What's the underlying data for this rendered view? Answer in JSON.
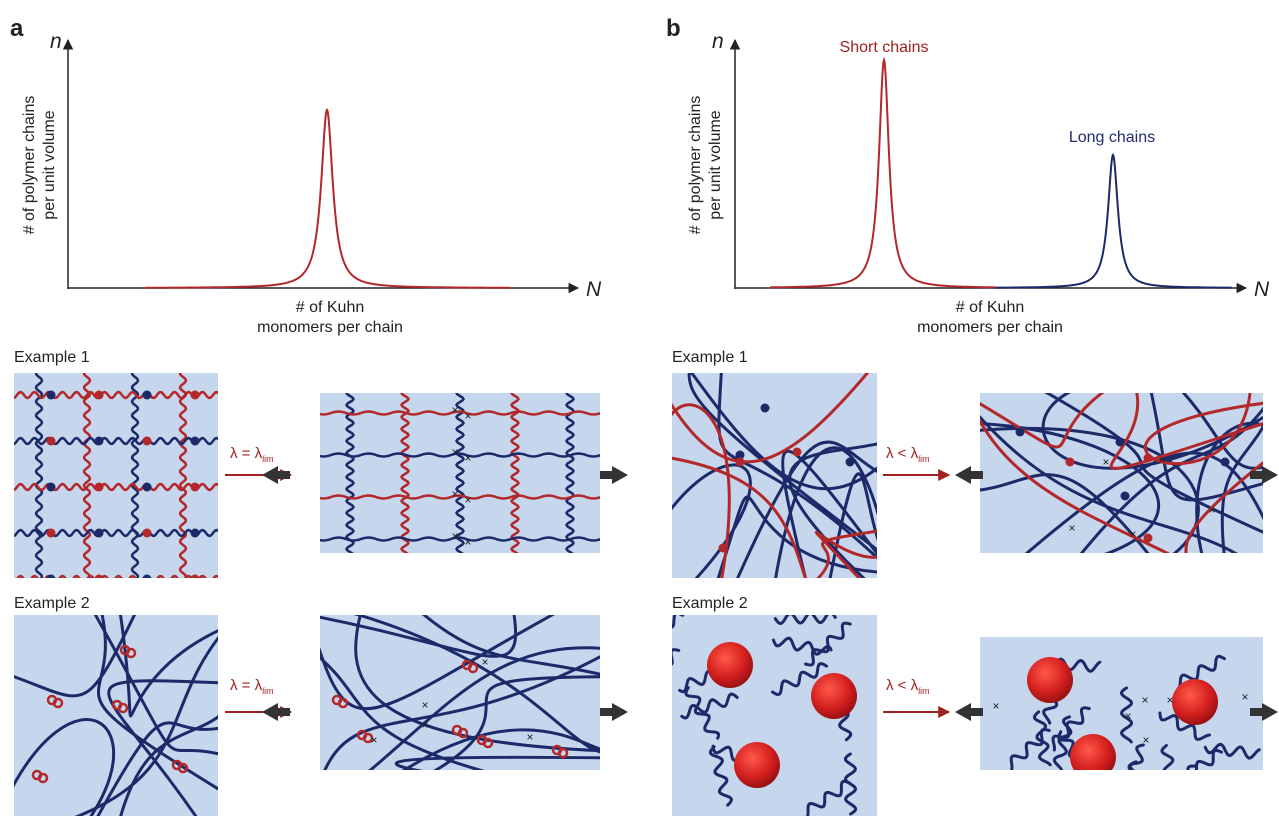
{
  "panels": [
    {
      "label": "a",
      "y_axis_symbol": "n",
      "x_axis_symbol": "N",
      "y_axis_label": [
        "# of polymer chains",
        "per unit volume"
      ],
      "x_axis_label": [
        "# of Kuhn",
        "monomers per chain"
      ],
      "examples": [
        {
          "title": "Example 1",
          "arrow_label": "λ = λ",
          "arrow_label_sub": "lim"
        },
        {
          "title": "Example 2",
          "arrow_label": "λ = λ",
          "arrow_label_sub": "lim"
        }
      ]
    },
    {
      "label": "b",
      "y_axis_symbol": "n",
      "x_axis_symbol": "N",
      "y_axis_label": [
        "# of polymer chains",
        "per unit volume"
      ],
      "x_axis_label": [
        "# of Kuhn",
        "monomers per chain"
      ],
      "peak_labels": [
        "Short chains",
        "Long chains"
      ],
      "examples": [
        {
          "title": "Example 1",
          "arrow_label": "λ < λ",
          "arrow_label_sub": "lim"
        },
        {
          "title": "Example 2",
          "arrow_label": "λ < λ",
          "arrow_label_sub": "lim"
        }
      ]
    }
  ]
}
